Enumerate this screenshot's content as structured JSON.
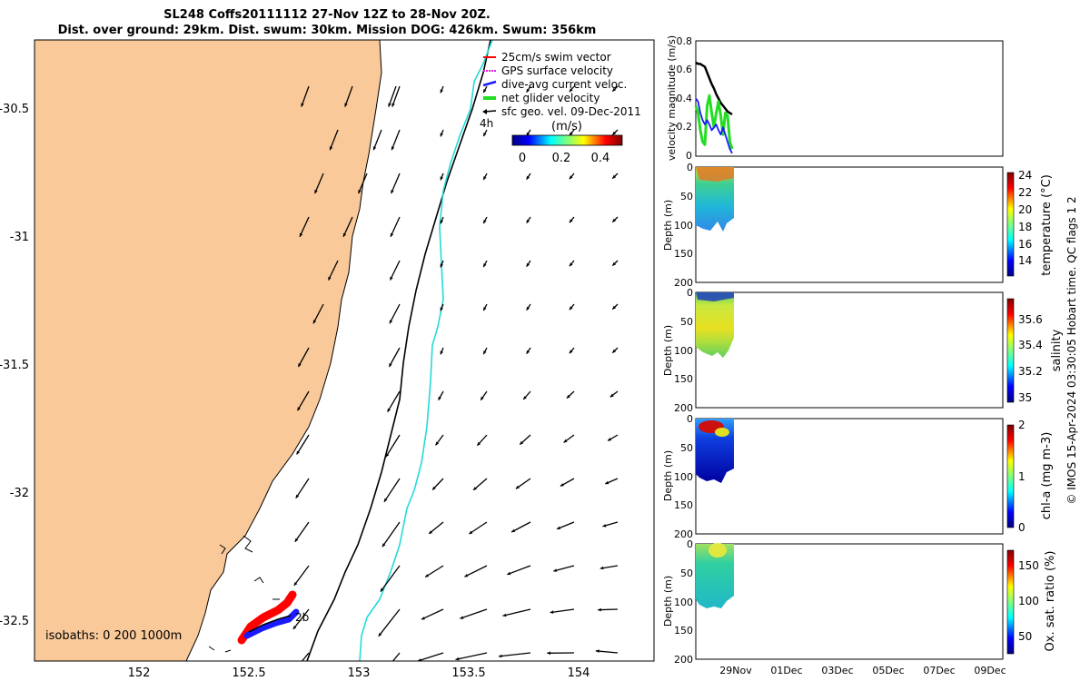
{
  "title": {
    "line1": "SL248 Coffs20111112 27-Nov 12Z to 28-Nov 20Z.",
    "line2": "Dist. over ground: 29km. Dist. swum: 30km. Mission DOG: 426km. Swum: 356km"
  },
  "colors": {
    "land": "#f9c99a",
    "track_red": "#ff0000",
    "track_blue": "#1a1aff",
    "isobath_200": "#000000",
    "isobath_1000": "#25d9d9",
    "net_velocity": "#22dd22"
  },
  "map": {
    "x_ticks": [
      "152",
      "152.5",
      "153",
      "153.5",
      "154"
    ],
    "y_ticks": [
      "-30.5",
      "-31",
      "-31.5",
      "-32",
      "-32.5"
    ],
    "legend": [
      "25cm/s swim vector",
      "GPS surface velocity",
      "dive-avg current veloc.",
      "net glider velocity",
      "sfc geo. vel. 09-Dec-2011"
    ],
    "legend_4h": "4h",
    "colorbar_title": "(m/s)",
    "colorbar_ticks": [
      "0",
      "0.2",
      "0.4"
    ],
    "isobaths_label": "isobaths: 0   200  1000m",
    "track_label": "2b"
  },
  "chart_data": [
    {
      "type": "line",
      "ylabel": "velocity magnitude (m/s)",
      "ylim": [
        0,
        0.8
      ],
      "y_ticks": [
        "0",
        "0.2",
        "0.4",
        "0.6",
        "0.8"
      ],
      "series": [
        {
          "color": "#000000",
          "x_hours": [
            0,
            2,
            4,
            6,
            8,
            10,
            12,
            14,
            16,
            18,
            20,
            22,
            24,
            26,
            28,
            30,
            32
          ],
          "y": [
            0.65,
            0.64,
            0.64,
            0.63,
            0.62,
            0.58,
            0.54,
            0.5,
            0.47,
            0.43,
            0.4,
            0.37,
            0.35,
            0.33,
            0.31,
            0.3,
            0.29
          ]
        },
        {
          "color": "#22dd22",
          "x_hours": [
            0,
            2,
            4,
            6,
            8,
            10,
            12,
            14,
            16,
            18,
            20,
            22,
            24,
            26,
            28,
            30,
            32
          ],
          "y": [
            0.35,
            0.3,
            0.18,
            0.1,
            0.08,
            0.35,
            0.42,
            0.3,
            0.2,
            0.3,
            0.38,
            0.28,
            0.15,
            0.3,
            0.28,
            0.1,
            0.05
          ]
        },
        {
          "color": "#1a1aff",
          "x_hours": [
            0,
            2,
            4,
            6,
            8,
            10,
            12,
            14,
            16,
            18,
            20,
            22,
            24,
            26,
            28,
            30,
            32
          ],
          "y": [
            0.4,
            0.38,
            0.3,
            0.25,
            0.22,
            0.25,
            0.22,
            0.18,
            0.2,
            0.22,
            0.18,
            0.15,
            0.2,
            0.15,
            0.1,
            0.05,
            0.02
          ]
        }
      ]
    },
    {
      "type": "heatmap",
      "ylabel": "Depth (m)",
      "colorbar_label": "temperature (°C)",
      "colorbar_ticks": [
        "14",
        "16",
        "18",
        "20",
        "22",
        "24"
      ],
      "y_ticks": [
        "0",
        "50",
        "100",
        "150",
        "200"
      ]
    },
    {
      "type": "heatmap",
      "ylabel": "Depth (m)",
      "colorbar_label": "salinity",
      "colorbar_ticks": [
        "35",
        "35.2",
        "35.4",
        "35.6"
      ],
      "y_ticks": [
        "0",
        "50",
        "100",
        "150",
        "200"
      ]
    },
    {
      "type": "heatmap",
      "ylabel": "Depth (m)",
      "colorbar_label": "chl-a (mg m-3)",
      "colorbar_ticks": [
        "0",
        "1",
        "2"
      ],
      "y_ticks": [
        "0",
        "50",
        "100",
        "150",
        "200"
      ]
    },
    {
      "type": "heatmap",
      "ylabel": "Depth (m)",
      "colorbar_label": "Ox. sat. ratio (%)",
      "colorbar_ticks": [
        "50",
        "100",
        "150"
      ],
      "y_ticks": [
        "0",
        "50",
        "100",
        "150",
        "200"
      ]
    }
  ],
  "time_axis": {
    "x_ticks": [
      "29Nov",
      "01Dec",
      "03Dec",
      "05Dec",
      "07Dec",
      "09Dec"
    ]
  },
  "footer": "© IMOS 15-Apr-2024 03:30:05 Hobart time. QC flags 1  2"
}
